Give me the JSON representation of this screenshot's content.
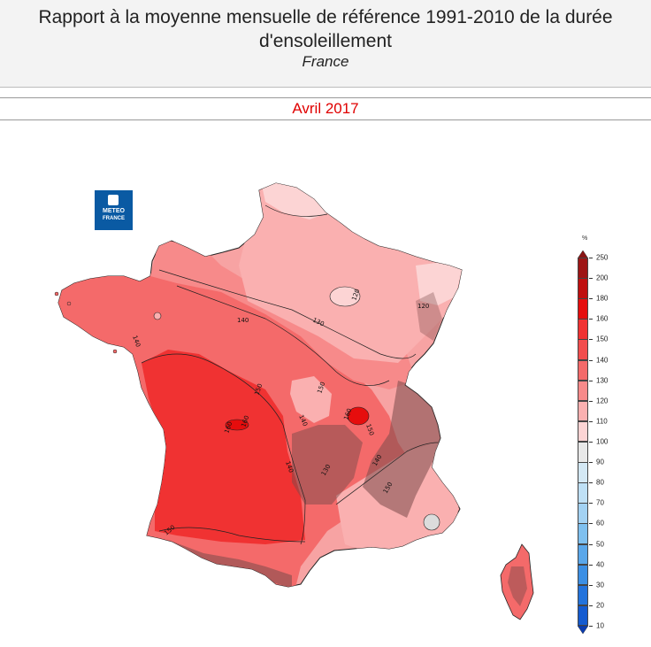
{
  "header": {
    "title_line1": "Rapport à la moyenne mensuelle de référence 1991-2010 de la durée",
    "title_line2": "d'ensoleillement",
    "subtitle": "France"
  },
  "month": "Avril 2017",
  "logo": {
    "line1": "METEO",
    "line2": "FRANCE"
  },
  "legend": {
    "unit": "%",
    "labels": [
      "250",
      "200",
      "180",
      "160",
      "150",
      "140",
      "130",
      "120",
      "110",
      "100",
      "90",
      "80",
      "70",
      "60",
      "50",
      "40",
      "30",
      "20",
      "10"
    ],
    "colors": [
      "#9e1515",
      "#bf0f0f",
      "#e60d0d",
      "#f03232",
      "#f24d4d",
      "#f46a6a",
      "#f78a8a",
      "#fab0b0",
      "#fcd4d4",
      "#e8e8e8",
      "#d4e8f4",
      "#bfe0f5",
      "#a3d2f3",
      "#7fc0ef",
      "#5aa7ea",
      "#3c8fe4",
      "#2373dc",
      "#145bd0",
      "#0a44c0"
    ]
  },
  "contour_labels": [
    "120",
    "130",
    "140",
    "150",
    "160",
    "140",
    "150",
    "160",
    "140",
    "150",
    "150",
    "140",
    "150",
    "120",
    "130",
    "140",
    "160"
  ]
}
